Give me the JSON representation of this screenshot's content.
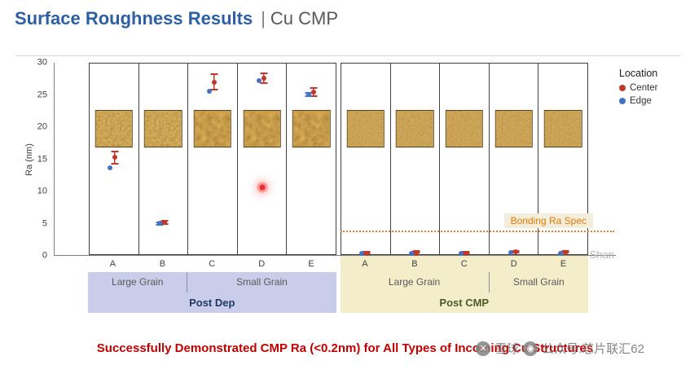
{
  "header": {
    "title": "Surface Roughness Results",
    "separator": "|",
    "subtitle": "Cu CMP"
  },
  "legend": {
    "title": "Location",
    "items": [
      {
        "label": "Center",
        "color": "#c0392b"
      },
      {
        "label": "Edge",
        "color": "#4472c4"
      }
    ]
  },
  "chart_data": {
    "type": "scatter",
    "ylabel": "Ra (nm)",
    "ylim": [
      0,
      30
    ],
    "yticks": [
      0,
      5,
      10,
      15,
      20,
      25,
      30
    ],
    "grid": false,
    "legend_position": "right",
    "spec_line": {
      "label": "Bonding Ra Spec",
      "value": 3.5,
      "color": "#ed7d31"
    },
    "groups": [
      {
        "name": "Post Dep",
        "band_color": "#c9cdea",
        "name_color": "#1f3864",
        "letters_on_band": false,
        "categories": [
          "A",
          "B",
          "C",
          "D",
          "E"
        ],
        "textures": [
          "fine",
          "fine",
          "bumpy",
          "bumpy",
          "bumpy"
        ],
        "subgroups": [
          {
            "label": "Large Grain",
            "span": 2
          },
          {
            "label": "Small Grain",
            "span": 3
          }
        ],
        "series": [
          {
            "name": "Center",
            "color": "#c0392b",
            "values": [
              15.2,
              5.1,
              27.0,
              27.6,
              25.4
            ],
            "errors": [
              1.1,
              0.4,
              1.3,
              0.9,
              0.8
            ]
          },
          {
            "name": "Edge",
            "color": "#4472c4",
            "values": [
              13.6,
              4.9,
              25.5,
              27.2,
              25.0
            ],
            "errors": [
              0,
              0.3,
              0,
              0,
              0.4
            ]
          }
        ],
        "outlier": {
          "category": "D",
          "value": 10.5,
          "color": "#e63030"
        }
      },
      {
        "name": "Post CMP",
        "band_color": "#f4edca",
        "name_color": "#4a5d23",
        "letters_on_band": true,
        "categories": [
          "A",
          "B",
          "C",
          "D",
          "E"
        ],
        "textures": [
          "smooth",
          "smooth",
          "smooth",
          "smooth",
          "smooth"
        ],
        "subgroups": [
          {
            "label": "Large Grain",
            "span": 3
          },
          {
            "label": "Small Grain",
            "span": 2
          }
        ],
        "series": [
          {
            "name": "Center",
            "color": "#c0392b",
            "values": [
              0.25,
              0.3,
              0.25,
              0.5,
              0.35
            ],
            "errors": [
              0.1,
              0.1,
              0.1,
              0.3,
              0.15
            ]
          },
          {
            "name": "Edge",
            "color": "#4472c4",
            "values": [
              0.2,
              0.25,
              0.2,
              0.35,
              0.3
            ],
            "errors": [
              0,
              0,
              0,
              0,
              0
            ]
          }
        ]
      }
    ]
  },
  "footer": {
    "message": "Successfully Demonstrated CMP Ra (<0.2nm) for All Types of Incoming Cu Structures"
  },
  "watermark": {
    "icon1": "✕",
    "text1": "雪球",
    "icon2": "◉",
    "text2": "公众号:芯片联汇62",
    "fragment": "Shan"
  }
}
